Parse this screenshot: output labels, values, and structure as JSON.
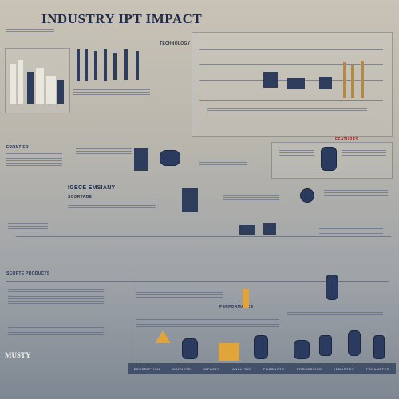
{
  "header": {
    "title": "INDUSTRY IPT IMPACT"
  },
  "sections": {
    "overview_label": "FRONTIER",
    "tools_label": "TECHNOLOGY",
    "center_label": "IGECE EMSIANY",
    "center_sub": "SCORTABE",
    "right_label": "FEATURES",
    "flow_label": "SCOPTE PRODUCTS",
    "timeline_label": "PERFORMANCE"
  },
  "footer": {
    "logo": "MUSTY",
    "items": [
      "DESCRIPTION",
      "MARKETS",
      "IMPACTS",
      "ANALYSIS",
      "PRODUCTS",
      "PROCESSING",
      "INDUSTRY",
      "PARAMETER"
    ]
  },
  "colors": {
    "navy": "#2f3d5c",
    "gold": "#b08a4a",
    "accent": "#e0a43a"
  }
}
